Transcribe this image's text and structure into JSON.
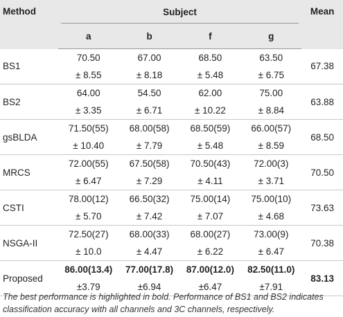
{
  "header": {
    "method": "Method",
    "subject": "Subject",
    "mean": "Mean",
    "subjects": [
      "a",
      "b",
      "f",
      "g"
    ]
  },
  "rows": [
    {
      "method": "BS1",
      "values": [
        "70.50",
        "67.00",
        "68.50",
        "63.50"
      ],
      "sds": [
        "± 8.55",
        "± 8.18",
        "± 5.48",
        "± 6.75"
      ],
      "mean": "67.38"
    },
    {
      "method": "BS2",
      "values": [
        "64.00",
        "54.50",
        "62.00",
        "75.00"
      ],
      "sds": [
        "± 3.35",
        "± 6.71",
        "± 10.22",
        "± 8.84"
      ],
      "mean": "63.88"
    },
    {
      "method": "gsBLDA",
      "values": [
        "71.50(55)",
        "68.00(58)",
        "68.50(59)",
        "66.00(57)"
      ],
      "sds": [
        "± 10.40",
        "± 7.79",
        "± 5.48",
        "± 8.59"
      ],
      "mean": "68.50"
    },
    {
      "method": "MRCS",
      "values": [
        "72.00(55)",
        "67.50(58)",
        "70.50(43)",
        "72.00(3)"
      ],
      "sds": [
        "± 6.47",
        "± 7.29",
        "± 4.11",
        "± 3.71"
      ],
      "mean": "70.50"
    },
    {
      "method": "CSTI",
      "values": [
        "78.00(12)",
        "66.50(32)",
        "75.00(14)",
        "75.00(10)"
      ],
      "sds": [
        "± 5.70",
        "± 7.42",
        "± 7.07",
        "± 4.68"
      ],
      "mean": "73.63"
    },
    {
      "method": "NSGA-II",
      "values": [
        "72.50(27)",
        "68.00(33)",
        "68.00(27)",
        "73.00(9)"
      ],
      "sds": [
        "± 10.0",
        "± 4.47",
        "± 6.22",
        "± 6.47"
      ],
      "mean": "70.38"
    },
    {
      "method": "Proposed",
      "values": [
        "86.00(13.4)",
        "77.00(17.8)",
        "87.00(12.0)",
        "82.50(11.0)"
      ],
      "sds": [
        "±3.79",
        "±6.94",
        "±6.47",
        "±7.91"
      ],
      "mean": "83.13"
    }
  ],
  "note": "The best performance is highlighted in bold. Performance of BS1 and BS2 indicates classification accuracy with all channels and 3C channels, respectively."
}
